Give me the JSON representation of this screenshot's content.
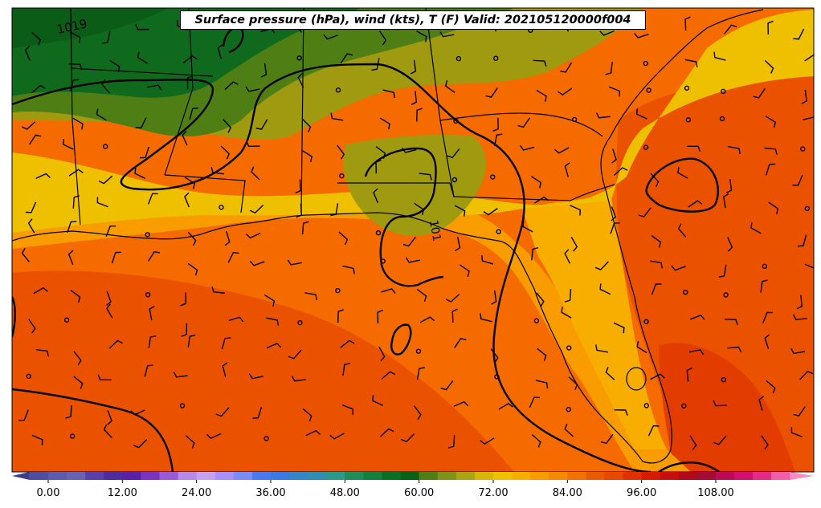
{
  "title": "Surface pressure (hPa), wind (kts), T (F) Valid: 202105120000f004",
  "isobar_labels": [
    {
      "text": "1019"
    },
    {
      "text": "101"
    }
  ],
  "colorbar": {
    "ticks": [
      "0.00",
      "12.00",
      "24.00",
      "36.00",
      "48.00",
      "60.00",
      "72.00",
      "84.00",
      "96.00",
      "108.00"
    ],
    "tick_values": [
      0,
      12,
      24,
      36,
      48,
      60,
      72,
      84,
      96,
      108
    ],
    "min": -6,
    "max": 120,
    "step": 3,
    "extend": "both",
    "colors": [
      "#3b3b8f",
      "#4e4e9e",
      "#5c5caa",
      "#6a63b2",
      "#5a3fa8",
      "#4f2aa0",
      "#5b20a8",
      "#7a35c0",
      "#9a5ad6",
      "#b888e6",
      "#c8a0f0",
      "#a890f8",
      "#7b8cf8",
      "#4a7af0",
      "#3a78e6",
      "#3584c8",
      "#2f8fb0",
      "#2a9a8a",
      "#1f8c5a",
      "#14803e",
      "#0a7028",
      "#0a6218",
      "#4f7f14",
      "#7e9418",
      "#a9a414",
      "#d7b50b",
      "#efc000",
      "#f7ae00",
      "#f89c00",
      "#f58900",
      "#f27200",
      "#ea5a00",
      "#e84800",
      "#e23000",
      "#d81a00",
      "#c80e0e",
      "#b0081c",
      "#a40c34",
      "#bc0a54",
      "#d21070",
      "#e62a8c",
      "#f25fa8",
      "#f98cc0"
    ]
  },
  "colors": {
    "gulf_warm": "#f56b00",
    "gulf_hot": "#ea5200",
    "land_yellow": "#efc000",
    "land_olive": "#a09a10",
    "land_green": "#4f7f14",
    "land_dark_green": "#0f6a1e",
    "isobar": "#000000"
  }
}
